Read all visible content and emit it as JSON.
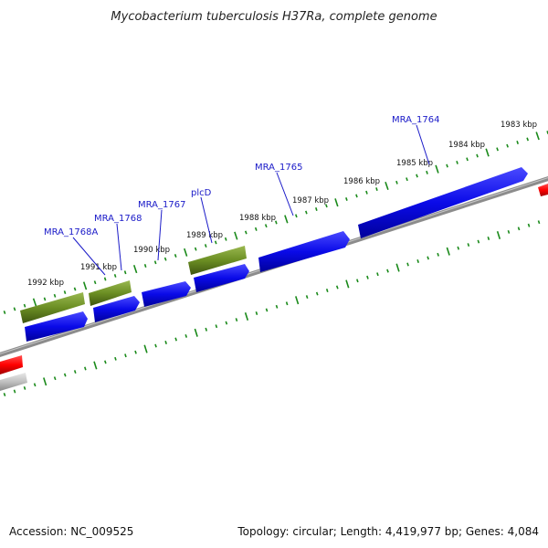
{
  "title": "Mycobacterium tuberculosis H37Ra, complete genome",
  "footer": {
    "accession": "Accession: NC_009525",
    "summary": "Topology: circular; Length: 4,419,977 bp; Genes: 4,084"
  },
  "ticks": [
    "1992 kbp",
    "1991 kbp",
    "1990 kbp",
    "1989 kbp",
    "1988 kbp",
    "1987 kbp",
    "1986 kbp",
    "1985 kbp",
    "1984 kbp",
    "1983 kbp"
  ],
  "gene_labels": [
    "MRA_1768A",
    "MRA_1768",
    "MRA_1767",
    "plcD",
    "MRA_1765",
    "MRA_1764"
  ],
  "colors": {
    "gene_blue": "#1010e0",
    "gene_green": "#6b8e23",
    "gene_red": "#ff0000",
    "gene_grey": "#c0c0c0",
    "backbone": "#808080",
    "tick_green": "#1a8a1a",
    "label_blue": "#1a1ac8"
  }
}
